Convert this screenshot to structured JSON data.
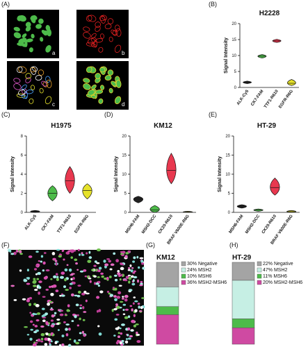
{
  "panels": {
    "A": "(A)",
    "B": "(B)",
    "C": "(C)",
    "D": "(D)",
    "E": "(E)",
    "F": "(F)",
    "G": "(G)",
    "H": "(H)"
  },
  "microscopy": {
    "subpanels": [
      "a",
      "b",
      "c",
      "d"
    ]
  },
  "colors": {
    "green": "#4dbb4a",
    "black": "#222222",
    "red": "#e8384f",
    "yellow": "#e6e22b",
    "gray": "#a4a4a4",
    "mint": "#c6efe4",
    "magenta": "#cf4aa2"
  },
  "chart_data": [
    {
      "type": "violin",
      "panel": "B",
      "title": "H2228",
      "ylabel": "Signal Intensity",
      "ylim": [
        0,
        20
      ],
      "yticks": [
        0,
        5,
        10,
        15,
        20
      ],
      "categories": [
        "ALK-Cy5",
        "CK7-FAM",
        "TTF1-R610",
        "EGFR-R6G"
      ],
      "values": [
        1.6,
        9.8,
        14.6,
        1.3
      ],
      "ranges": [
        [
          1.2,
          2.0
        ],
        [
          9.2,
          10.3
        ],
        [
          14.1,
          15.1
        ],
        [
          0.6,
          2.5
        ]
      ]
    },
    {
      "type": "violin",
      "panel": "C",
      "title": "H1975",
      "ylabel": "Signal Intensity",
      "ylim": [
        0,
        8
      ],
      "yticks": [
        0,
        2,
        4,
        6,
        8
      ],
      "categories": [
        "ALK-Cy5",
        "CK7-FAM",
        "TTF1-R610",
        "EGFR-R6G"
      ],
      "values": [
        0.1,
        2.0,
        3.3,
        2.3
      ],
      "ranges": [
        [
          0.0,
          0.2
        ],
        [
          1.2,
          2.8
        ],
        [
          2.0,
          4.8
        ],
        [
          1.4,
          3.0
        ]
      ]
    },
    {
      "type": "violin",
      "panel": "D",
      "title": "KM12",
      "ylabel": "Signal Intensity",
      "ylim": [
        0,
        20
      ],
      "yticks": [
        0,
        5,
        10,
        15,
        20
      ],
      "categories": [
        "MSH6-FAM",
        "MSH2-DCC",
        "CK20-R610",
        "BRAF V600E-R6G"
      ],
      "values": [
        3.5,
        0.6,
        11.0,
        0.1
      ],
      "ranges": [
        [
          2.5,
          4.2
        ],
        [
          0.0,
          1.8
        ],
        [
          7.5,
          15.5
        ],
        [
          0.0,
          0.3
        ]
      ]
    },
    {
      "type": "violin",
      "panel": "E",
      "title": "HT-29",
      "ylabel": "Signal Intensity",
      "ylim": [
        0,
        20
      ],
      "yticks": [
        0,
        5,
        10,
        15,
        20
      ],
      "categories": [
        "MSH6-FAM",
        "MSH2-DCC",
        "CK20-R610",
        "BRAF V600E-R6G"
      ],
      "values": [
        1.6,
        0.6,
        6.5,
        0.2
      ],
      "ranges": [
        [
          1.1,
          2.0
        ],
        [
          0.3,
          0.9
        ],
        [
          4.5,
          9.0
        ],
        [
          0.0,
          0.5
        ]
      ]
    },
    {
      "type": "stacked-bar",
      "panel": "G",
      "title": "KM12",
      "segments": [
        {
          "name": "Negative",
          "value": 30,
          "label": "30% Negative"
        },
        {
          "name": "MSH2",
          "value": 24,
          "label": "24% MSH2"
        },
        {
          "name": "MSH6",
          "value": 10,
          "label": "10% MSH6"
        },
        {
          "name": "MSH2-MSH6",
          "value": 36,
          "label": "36% MSH2-MSH6"
        }
      ]
    },
    {
      "type": "stacked-bar",
      "panel": "H",
      "title": "HT-29",
      "segments": [
        {
          "name": "Negative",
          "value": 22,
          "label": "22% Negative"
        },
        {
          "name": "MSH2",
          "value": 47,
          "label": "47% MSH2"
        },
        {
          "name": "MSH6",
          "value": 11,
          "label": "11% MSH6"
        },
        {
          "name": "MSH2-MSH6",
          "value": 20,
          "label": "20% MSH2-MSH6"
        }
      ]
    }
  ]
}
